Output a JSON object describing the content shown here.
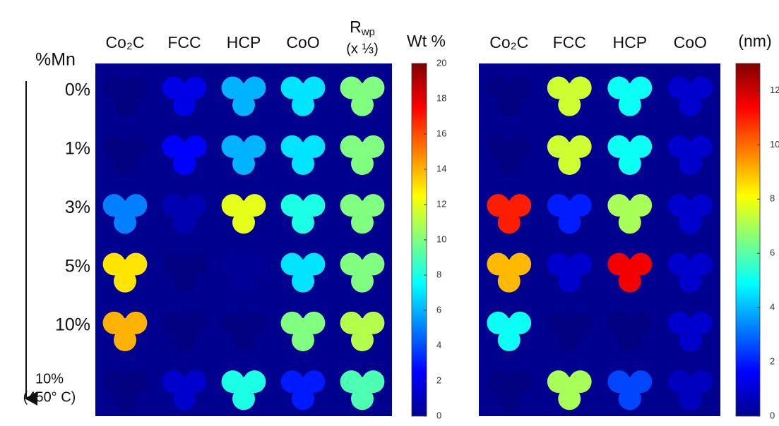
{
  "row_title": "%Mn",
  "rows": [
    "0%",
    "1%",
    "3%",
    "5%",
    "10%",
    [
      "10%",
      "(450° C)"
    ]
  ],
  "chart_data": [
    {
      "type": "heatmap",
      "title": "Wt %",
      "columns": [
        "Co₂C",
        "FCC",
        "HCP",
        "CoO",
        {
          "text": "R",
          "sub": "wp",
          "note": "(x ⅓)"
        }
      ],
      "values": [
        [
          0,
          2,
          6,
          7,
          10
        ],
        [
          0,
          2.5,
          6,
          7,
          10
        ],
        [
          5,
          1,
          12,
          8,
          10
        ],
        [
          13,
          0,
          0.5,
          7,
          10
        ],
        [
          14,
          0,
          0,
          10,
          11
        ],
        [
          0,
          1.5,
          8,
          3,
          9
        ]
      ],
      "ylim": [
        0,
        20
      ],
      "yticks": [
        0,
        2,
        4,
        6,
        8,
        10,
        12,
        14,
        16,
        18,
        20
      ],
      "colormap": "jet"
    },
    {
      "type": "heatmap",
      "title": "(nm)",
      "columns": [
        "Co₂C",
        "FCC",
        "HCP",
        "CoO"
      ],
      "values": [
        [
          0,
          7.5,
          5,
          1
        ],
        [
          0,
          7.5,
          5,
          1
        ],
        [
          11,
          2,
          7,
          1
        ],
        [
          9,
          1,
          11.5,
          1
        ],
        [
          5,
          0,
          0,
          1
        ],
        [
          0,
          7,
          2.5,
          0.8
        ]
      ],
      "ylim": [
        0,
        13
      ],
      "yticks": [
        0,
        2,
        4,
        6,
        8,
        10,
        12
      ],
      "colormap": "jet"
    }
  ]
}
